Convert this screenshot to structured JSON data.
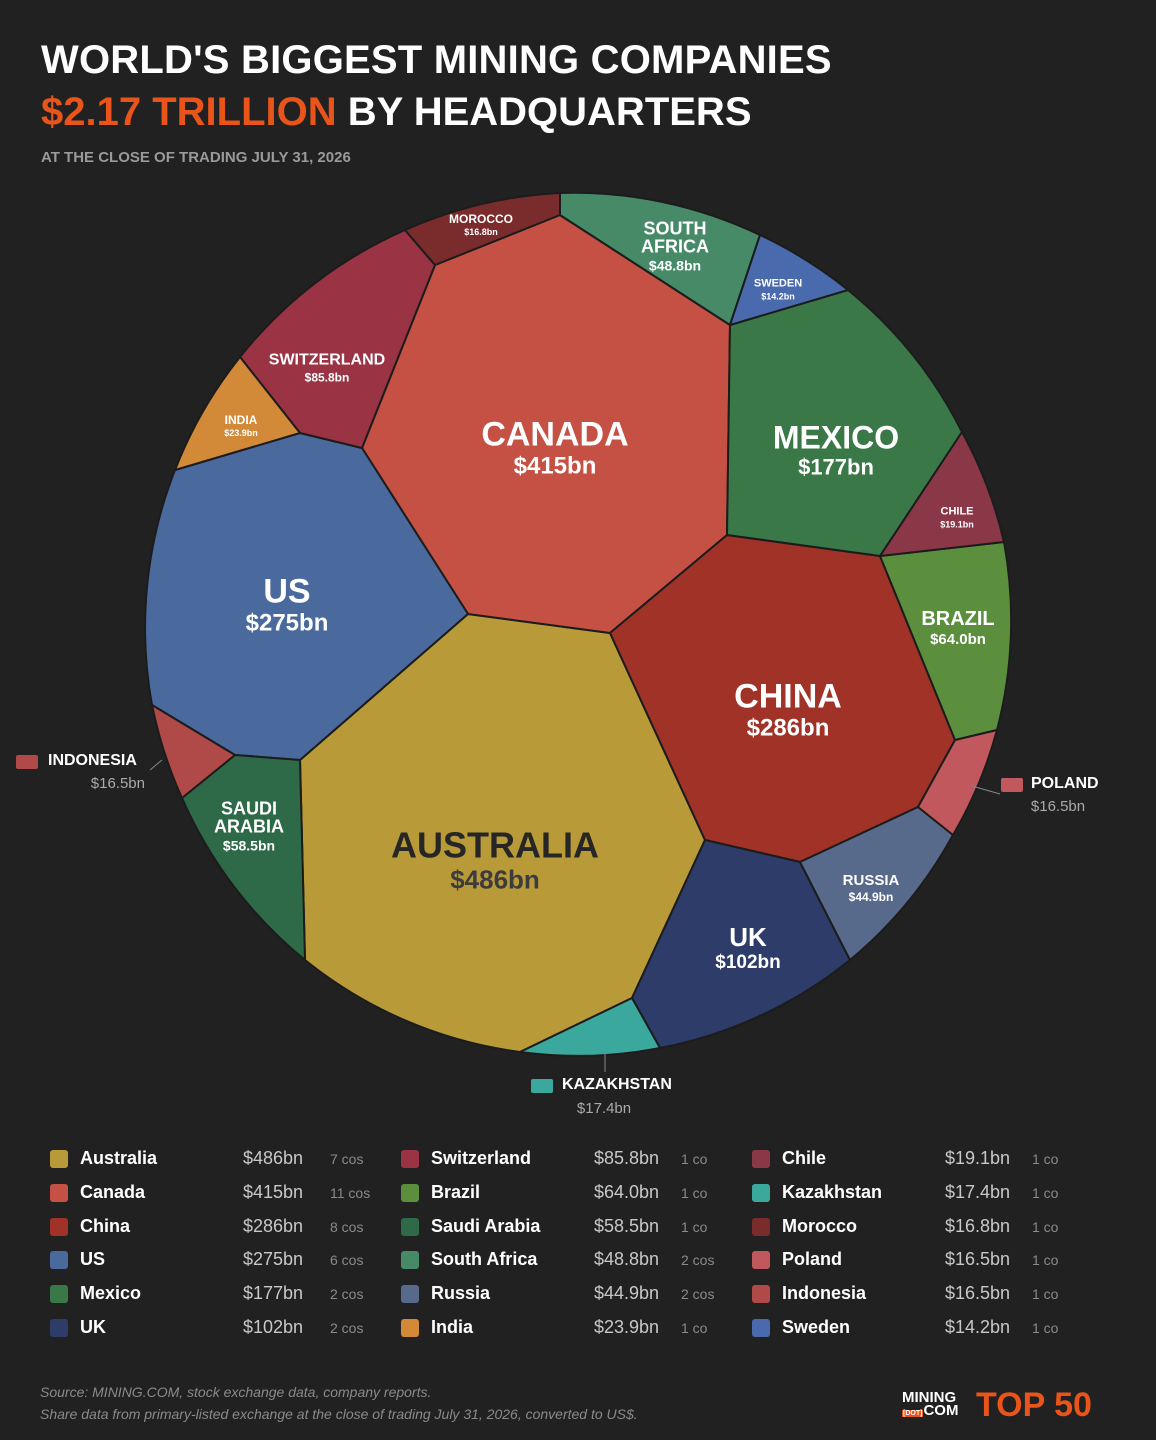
{
  "chart_data": {
    "type": "voronoi",
    "title": "WORLD'S BIGGEST MINING COMPANIES",
    "highlight": "$2.17 TRILLION",
    "subtitle": "BY HEADQUARTERS",
    "note": "AT THE CLOSE OF TRADING JULY 31, 2026",
    "categories": [
      "Australia",
      "Canada",
      "China",
      "US",
      "Mexico",
      "UK",
      "Switzerland",
      "Brazil",
      "Saudi Arabia",
      "South Africa",
      "Russia",
      "India",
      "Chile",
      "Kazakhstan",
      "Morocco",
      "Poland",
      "Indonesia",
      "Sweden"
    ],
    "values": [
      486,
      415,
      286,
      275,
      177,
      102,
      85.8,
      64.0,
      58.5,
      48.8,
      44.9,
      23.9,
      19.1,
      17.4,
      16.8,
      16.5,
      16.5,
      14.2
    ],
    "value_labels": [
      "$486bn",
      "$415bn",
      "$286bn",
      "$275bn",
      "$177bn",
      "$102bn",
      "$85.8bn",
      "$64.0bn",
      "$58.5bn",
      "$48.8bn",
      "$44.9bn",
      "$23.9bn",
      "$19.1bn",
      "$17.4bn",
      "$16.8bn",
      "$16.5bn",
      "$16.5bn",
      "$14.2bn"
    ],
    "companies": [
      7,
      11,
      8,
      6,
      2,
      2,
      1,
      1,
      1,
      2,
      2,
      1,
      1,
      1,
      1,
      1,
      1,
      1
    ],
    "company_labels": [
      "7 cos",
      "11 cos",
      "8 cos",
      "6 cos",
      "2 cos",
      "2 cos",
      "1 co",
      "1 co",
      "1 co",
      "2 cos",
      "2 cos",
      "1 co",
      "1 co",
      "1 co",
      "1 co",
      "1 co",
      "1 co",
      "1 co"
    ],
    "colors": [
      "#b99a38",
      "#c45143",
      "#a03228",
      "#4a6a9e",
      "#3a7848",
      "#2e3c6a",
      "#9a3344",
      "#5b8f3e",
      "#2f6a48",
      "#468a68",
      "#586a8c",
      "#d28a38",
      "#8a3848",
      "#3aa89c",
      "#7a2c2c",
      "#c0585e",
      "#b04a48",
      "#4a6aae"
    ],
    "source": [
      "Source: MINING.COM, stock exchange data, company reports.",
      "Share data from primary-listed exchange at the close of trading July 31, 2026, converted to US$."
    ],
    "logo": {
      "top": "MINING",
      "dot": "[DOT]",
      "bottom": "COM",
      "badge": "TOP 50"
    }
  }
}
